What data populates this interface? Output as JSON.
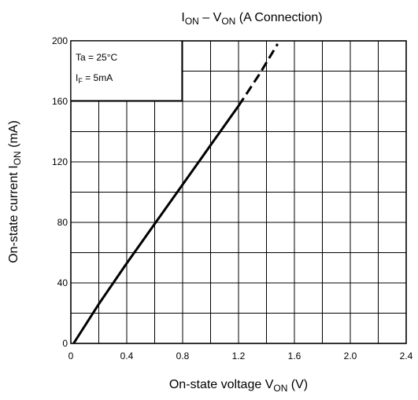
{
  "chart_data": {
    "type": "line",
    "title": {
      "main": "I",
      "main_sub": "ON",
      "sep": " – V",
      "sep_sub": "ON",
      "suffix": "   (A Connection)"
    },
    "xlabel": {
      "main": "On-state voltage   V",
      "sub": "ON",
      "suffix": "   (V)"
    },
    "ylabel": {
      "main": "On-state current   I",
      "sub": "ON",
      "suffix": "   (mA)"
    },
    "xlim": [
      0,
      2.4
    ],
    "ylim": [
      0,
      200
    ],
    "x_ticks": [
      0,
      0.2,
      0.4,
      0.6,
      0.8,
      1.0,
      1.2,
      1.4,
      1.6,
      1.8,
      2.0,
      2.2,
      2.4
    ],
    "x_tick_labels": [
      "0",
      "0.4",
      "0.8",
      "1.2",
      "1.6",
      "2.0",
      "2.4"
    ],
    "x_tick_label_values": [
      0,
      0.4,
      0.8,
      1.2,
      1.6,
      2.0,
      2.4
    ],
    "y_ticks": [
      0,
      20,
      40,
      60,
      80,
      100,
      120,
      140,
      160,
      180,
      200
    ],
    "y_tick_labels": [
      "0",
      "40",
      "80",
      "120",
      "160",
      "200"
    ],
    "y_tick_label_values": [
      0,
      40,
      80,
      120,
      160,
      200
    ],
    "grid": true,
    "legend": {
      "placement": "top-left",
      "line1": "Ta = 25°C",
      "line2_main": "I",
      "line2_sub": "F",
      "line2_suffix": " = 5mA"
    },
    "series": [
      {
        "style": "solid",
        "color": "#000000",
        "x": [
          0.02,
          0.2,
          0.4,
          0.6,
          0.8,
          1.0,
          1.2
        ],
        "y": [
          0,
          26,
          53,
          79,
          105,
          131,
          157
        ]
      },
      {
        "style": "dashed",
        "color": "#000000",
        "x": [
          1.2,
          1.35,
          1.48
        ],
        "y": [
          157,
          178,
          198
        ]
      }
    ]
  }
}
